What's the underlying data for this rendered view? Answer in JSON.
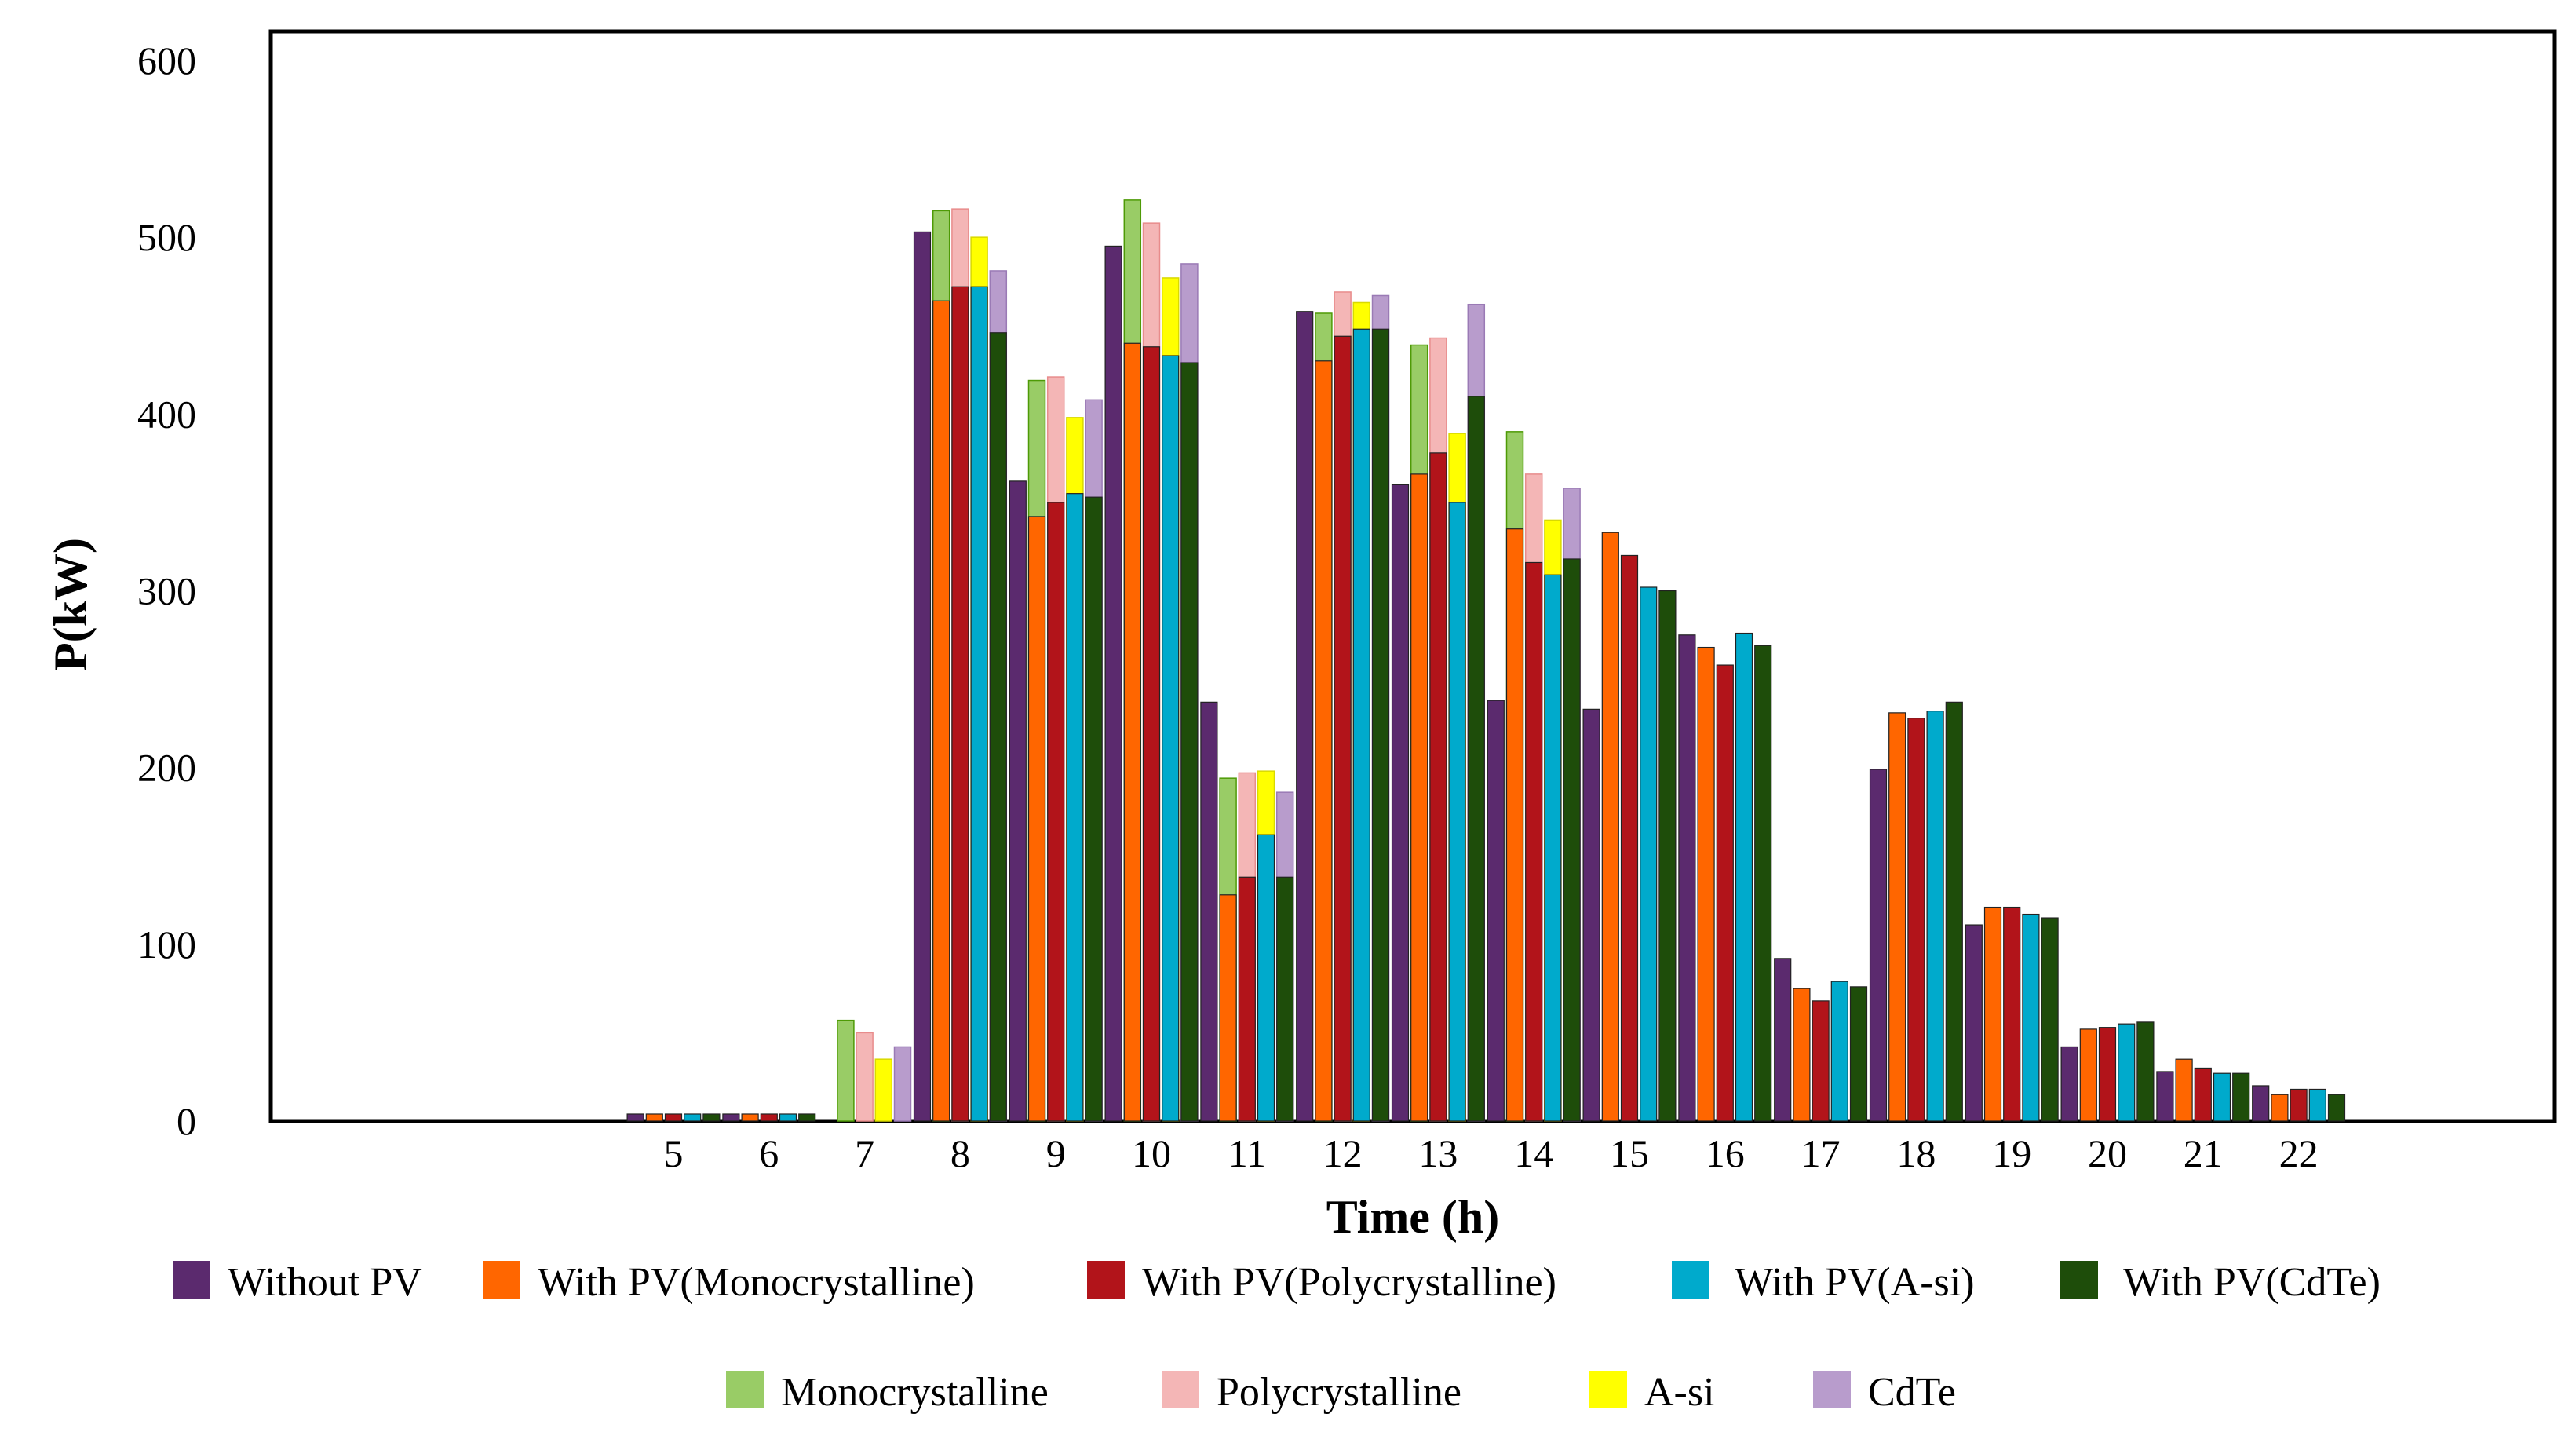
{
  "chart_data": {
    "type": "bar",
    "title": "",
    "xlabel": "Time (h)",
    "ylabel": "P(kW)",
    "ylim": [
      0,
      600
    ],
    "yticks": [
      0,
      100,
      200,
      300,
      400,
      500,
      600
    ],
    "grid": false,
    "legend_position": "bottom",
    "categories": [
      "5",
      "6",
      "7",
      "8",
      "9",
      "10",
      "11",
      "12",
      "13",
      "14",
      "15",
      "16",
      "17",
      "18",
      "19",
      "20",
      "21",
      "22"
    ],
    "series": [
      {
        "name": "Without PV",
        "color": "#5b2a6e",
        "values": [
          4,
          4,
          0,
          503,
          362,
          495,
          237,
          458,
          360,
          238,
          233,
          275,
          92,
          199,
          111,
          42,
          28,
          20
        ]
      },
      {
        "name": "With PV(Monocrystalline)",
        "color": "#ff6600",
        "values": [
          4,
          4,
          0,
          464,
          342,
          440,
          128,
          430,
          366,
          335,
          333,
          268,
          75,
          231,
          121,
          52,
          35,
          15
        ]
      },
      {
        "name": "With PV(Polycrystalline)",
        "color": "#b2141a",
        "values": [
          4,
          4,
          0,
          472,
          350,
          438,
          138,
          444,
          378,
          316,
          320,
          258,
          68,
          228,
          121,
          53,
          30,
          18
        ]
      },
      {
        "name": "With PV(A-si)",
        "color": "#00aacc",
        "values": [
          4,
          4,
          0,
          472,
          355,
          433,
          162,
          448,
          350,
          309,
          302,
          276,
          79,
          232,
          117,
          55,
          27,
          18
        ]
      },
      {
        "name": "With PV(CdTe)",
        "color": "#1e4d0a",
        "values": [
          4,
          4,
          0,
          446,
          353,
          429,
          138,
          448,
          410,
          318,
          300,
          269,
          76,
          237,
          115,
          56,
          27,
          15
        ]
      }
    ],
    "overlay_series": [
      {
        "name": "Monocrystalline",
        "color": "#99cc66",
        "edge": "#4e9a06",
        "on_series": 1,
        "values": [
          0,
          0,
          57,
          515,
          419,
          521,
          194,
          457,
          439,
          390,
          0,
          0,
          0,
          0,
          0,
          0,
          0,
          0
        ]
      },
      {
        "name": "Polycrystalline",
        "color": "#f4b6b6",
        "edge": "#e88c8c",
        "on_series": 2,
        "values": [
          0,
          0,
          50,
          516,
          421,
          508,
          197,
          469,
          443,
          366,
          0,
          0,
          0,
          0,
          0,
          0,
          0,
          0
        ]
      },
      {
        "name": "A-si",
        "color": "#ffff00",
        "edge": "#d9d900",
        "on_series": 3,
        "values": [
          0,
          0,
          35,
          500,
          398,
          477,
          198,
          463,
          389,
          340,
          0,
          0,
          0,
          0,
          0,
          0,
          0,
          0
        ]
      },
      {
        "name": "CdTe",
        "color": "#b89ccc",
        "edge": "#9a7ab5",
        "on_series": 4,
        "values": [
          0,
          0,
          42,
          481,
          408,
          485,
          186,
          467,
          462,
          358,
          0,
          0,
          0,
          0,
          0,
          0,
          0,
          0
        ]
      }
    ]
  }
}
